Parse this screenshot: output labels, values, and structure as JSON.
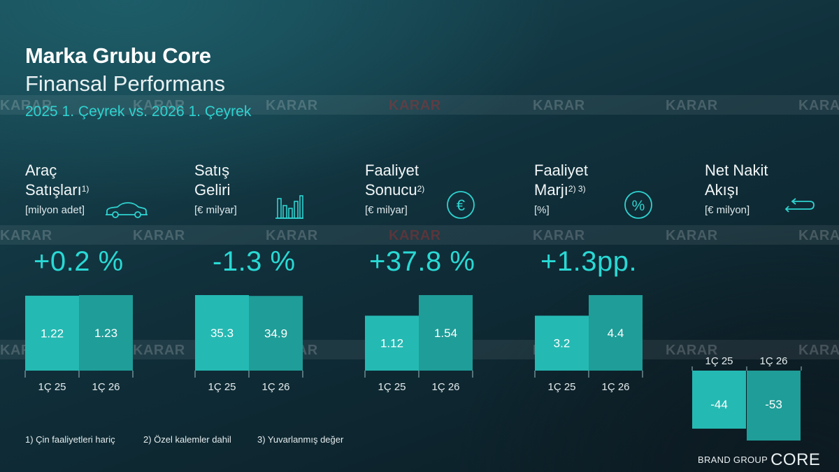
{
  "header": {
    "title": "Marka Grubu Core",
    "subtitle": "Finansal Performans",
    "period": "2025 1. Çeyrek vs. 2026 1. Çeyrek"
  },
  "kpis": [
    {
      "name_line1": "Araç",
      "name_line2": "Satışları",
      "footnote_ref": "1)",
      "unit": "[milyon adet]",
      "icon": "car-icon",
      "change": "+0.2 %"
    },
    {
      "name_line1": "Satış",
      "name_line2": "Geliri",
      "footnote_ref": "",
      "unit": "[€ milyar]",
      "icon": "bar-chart-icon",
      "change": "-1.3 %"
    },
    {
      "name_line1": "Faaliyet",
      "name_line2": "Sonucu",
      "footnote_ref": "2)",
      "unit": "[€ milyar]",
      "icon": "euro-icon",
      "change": "+37.8 %"
    },
    {
      "name_line1": "Faaliyet",
      "name_line2": "Marjı",
      "footnote_ref": "2) 3)",
      "unit": "[%]",
      "icon": "percent-icon",
      "change": "+1.3pp."
    },
    {
      "name_line1": "Net Nakit",
      "name_line2": "Akışı",
      "footnote_ref": "",
      "unit": "[€ milyon]",
      "icon": "cash-flow-arrows-icon",
      "change": ""
    }
  ],
  "chart_data": [
    {
      "type": "bar",
      "categories": [
        "1Ç 25",
        "1Ç 26"
      ],
      "values": [
        1.22,
        1.23
      ],
      "labels": [
        "1.22",
        "1.23"
      ]
    },
    {
      "type": "bar",
      "categories": [
        "1Ç 25",
        "1Ç 26"
      ],
      "values": [
        35.3,
        34.9
      ],
      "labels": [
        "35.3",
        "34.9"
      ]
    },
    {
      "type": "bar",
      "categories": [
        "1Ç 25",
        "1Ç 26"
      ],
      "values": [
        1.12,
        1.54
      ],
      "labels": [
        "1.12",
        "1.54"
      ]
    },
    {
      "type": "bar",
      "categories": [
        "1Ç 25",
        "1Ç 26"
      ],
      "values": [
        3.2,
        4.4
      ],
      "labels": [
        "3.2",
        "4.4"
      ]
    },
    {
      "type": "bar",
      "categories": [
        "1Ç 25",
        "1Ç 26"
      ],
      "values": [
        -44,
        -53
      ],
      "labels": [
        "-44",
        "-53"
      ]
    }
  ],
  "footnotes": [
    "1) Çin faaliyetleri hariç",
    "2) Özel kalemler dahil",
    "3) Yuvarlanmış değer"
  ],
  "brand": {
    "prefix": "BRAND GROUP",
    "name": "CORE"
  },
  "watermark": "KARAR",
  "colors": {
    "accent": "#29d9d4",
    "bar_a": "#25b9b3",
    "bar_b": "#1f9d98",
    "background": "#123a45"
  }
}
